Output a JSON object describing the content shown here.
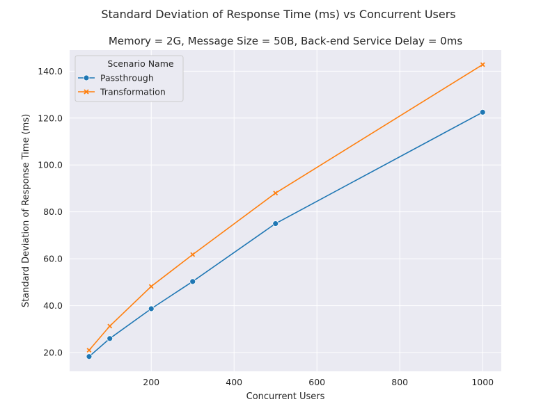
{
  "chart_data": {
    "type": "line",
    "suptitle": "Standard Deviation of Response Time (ms) vs Concurrent Users",
    "title": "Memory = 2G, Message Size = 50B, Back-end Service Delay = 0ms",
    "xlabel": "Concurrent Users",
    "ylabel": "Standard Deviation of Response Time (ms)",
    "xlim": [
      3,
      1045
    ],
    "ylim": [
      12,
      149
    ],
    "xticks": [
      200,
      400,
      600,
      800,
      1000
    ],
    "xtick_labels": [
      "200",
      "400",
      "600",
      "800",
      "1000"
    ],
    "yticks": [
      20,
      40,
      60,
      80,
      100,
      120,
      140
    ],
    "ytick_labels": [
      "20.0",
      "40.0",
      "60.0",
      "80.0",
      "100.0",
      "120.0",
      "140.0"
    ],
    "grid": true,
    "legend": {
      "title": "Scenario Name",
      "placement": "top-left"
    },
    "x": [
      50,
      100,
      200,
      300,
      500,
      1000
    ],
    "series": [
      {
        "name": "Passthrough",
        "values": [
          18.3,
          26.0,
          38.7,
          50.3,
          75.0,
          122.5
        ],
        "color": "#1f77b4",
        "marker": "circle"
      },
      {
        "name": "Transformation",
        "values": [
          21.0,
          31.3,
          48.2,
          61.8,
          88.0,
          142.8
        ],
        "color": "#ff7f0e",
        "marker": "x"
      }
    ]
  }
}
